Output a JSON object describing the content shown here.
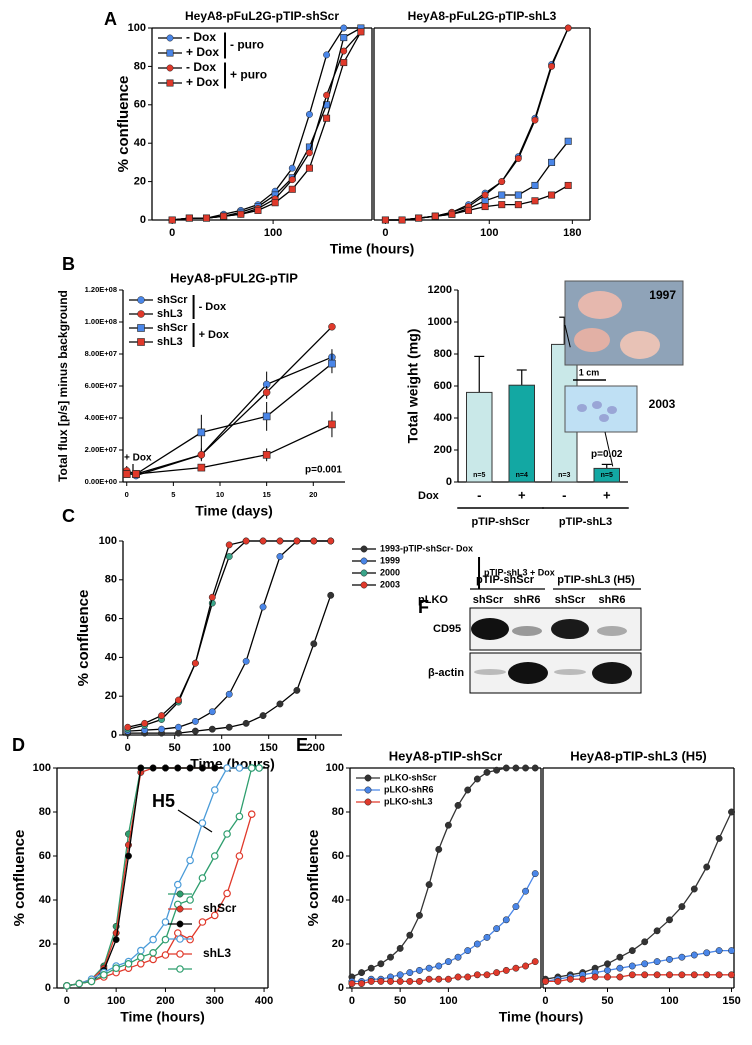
{
  "chart_data": [
    {
      "type": "line",
      "panel": "A",
      "title": "HeyA8-pFuL2G-pTIP-shScr",
      "xlabel": "Time (hours)",
      "ylabel": "% confluence",
      "x": [
        0,
        17,
        34,
        51,
        68,
        85,
        102,
        119,
        136,
        153,
        170,
        187
      ],
      "xlim": [
        -20,
        198
      ],
      "xticks": [
        0,
        100
      ],
      "ylim": [
        0,
        100
      ],
      "yticks": [
        0,
        20,
        40,
        60,
        80,
        100
      ],
      "legend": "upper left",
      "line_color": "#000000",
      "series": [
        {
          "name": "- Dox",
          "group": "- puro",
          "color": "#4a86e8",
          "marker": "circle",
          "values": [
            0,
            1,
            1,
            3,
            5,
            8,
            15,
            27,
            55,
            86,
            100,
            100
          ]
        },
        {
          "name": "+ Dox",
          "group": "- puro",
          "color": "#4a86e8",
          "marker": "square",
          "values": [
            0,
            1,
            1,
            2,
            4,
            7,
            13,
            22,
            38,
            60,
            95,
            100
          ]
        },
        {
          "name": "- Dox",
          "group": "+ puro",
          "color": "#e0392b",
          "marker": "circle",
          "values": [
            0,
            1,
            1,
            2,
            3,
            6,
            11,
            21,
            35,
            65,
            88,
            98
          ]
        },
        {
          "name": "+ Dox",
          "group": "+ puro",
          "color": "#e0392b",
          "marker": "square",
          "values": [
            0,
            1,
            1,
            2,
            3,
            5,
            9,
            16,
            27,
            53,
            82,
            98
          ]
        }
      ]
    },
    {
      "type": "line",
      "title": "HeyA8-pFuL2G-pTIP-shL3",
      "x": [
        0,
        16,
        32,
        48,
        64,
        80,
        96,
        112,
        128,
        144,
        160,
        176
      ],
      "xlim": [
        -11,
        197
      ],
      "xticks": [
        0,
        100,
        180
      ],
      "ylim": [
        0,
        100
      ],
      "line_color": "#000000",
      "series": [
        {
          "color": "#4a86e8",
          "marker": "circle",
          "values": [
            0,
            0,
            1,
            2,
            4,
            8,
            14,
            20,
            33,
            53,
            81,
            100
          ]
        },
        {
          "color": "#4a86e8",
          "marker": "square",
          "values": [
            0,
            0,
            1,
            2,
            3,
            6,
            10,
            13,
            13,
            18,
            30,
            41
          ]
        },
        {
          "color": "#e0392b",
          "marker": "circle",
          "values": [
            0,
            0,
            1,
            2,
            4,
            7,
            13,
            20,
            32,
            52,
            80,
            100
          ]
        },
        {
          "color": "#e0392b",
          "marker": "square",
          "values": [
            0,
            0,
            1,
            2,
            3,
            5,
            7,
            8,
            8,
            10,
            13,
            18
          ]
        }
      ]
    },
    {
      "type": "line",
      "panel": "B",
      "title": "HeyA8-pFUL2G-pTIP",
      "xlabel": "Time (days)",
      "ylabel": "Total flux [p/s] minus background",
      "x": [
        0,
        1,
        8,
        15,
        22
      ],
      "xlim": [
        -0.4,
        23.4
      ],
      "xticks": [
        0,
        5,
        10,
        15,
        20
      ],
      "ylim": [
        0,
        120000000
      ],
      "yticks": [
        {
          "value": 0,
          "label": "0.00E+00"
        },
        {
          "value": 20000000,
          "label": "2.00E+07"
        },
        {
          "value": 40000000,
          "label": "4.00E+07"
        },
        {
          "value": 60000000,
          "label": "6.00E+07"
        },
        {
          "value": 80000000,
          "label": "8.00E+07"
        },
        {
          "value": 100000000,
          "label": "1.00E+08"
        },
        {
          "value": 120000000,
          "label": "1.20E+08"
        }
      ],
      "legend": "upper left",
      "line_color": "#000000",
      "annotations": [
        "+ Dox",
        "p=0.001"
      ],
      "series": [
        {
          "name": "shScr",
          "group": "- Dox",
          "color": "#4a86e8",
          "marker": "circle",
          "values": [
            6000000,
            4000000,
            17000000,
            61000000,
            78000000
          ],
          "errors": [
            3000000,
            2000000,
            4000000,
            8000000,
            5000000
          ]
        },
        {
          "name": "shL3",
          "group": "- Dox",
          "color": "#e0392b",
          "marker": "circle",
          "values": [
            7000000,
            5000000,
            17000000,
            56000000,
            97000000
          ],
          "errors": [
            3000000,
            2000000,
            3000000,
            4000000,
            2000000
          ]
        },
        {
          "name": "shScr",
          "group": "+ Dox",
          "color": "#4a86e8",
          "marker": "square",
          "values": [
            5000000,
            5000000,
            31000000,
            41000000,
            74000000
          ],
          "errors": [
            2000000,
            2000000,
            11000000,
            9000000,
            6000000
          ]
        },
        {
          "name": "shL3",
          "group": "+ Dox",
          "color": "#e0392b",
          "marker": "square",
          "values": [
            5000000,
            5000000,
            9000000,
            17000000,
            36000000
          ],
          "errors": [
            2000000,
            2000000,
            2000000,
            4000000,
            8000000
          ]
        }
      ]
    },
    {
      "type": "bar",
      "ylabel": "Total weight (mg)",
      "ylim": [
        0,
        1200
      ],
      "yticks": [
        0,
        200,
        400,
        600,
        800,
        1000,
        1200
      ],
      "values": [
        560,
        605,
        860,
        85
      ],
      "errors": [
        225,
        95,
        170,
        25
      ],
      "colors": [
        "#c9e8e8",
        "#13a8a3",
        "#c9e8e8",
        "#13a8a3"
      ],
      "sample_labels": [
        "n=5",
        "n=4",
        "n=3",
        "n=5"
      ],
      "dox_title": "Dox",
      "dox_labels": [
        "-",
        "+",
        "-",
        "+"
      ],
      "groups": [
        "pTIP-shScr",
        "pTIP-shL3"
      ],
      "annotation": "p=0.02",
      "photo_labels": [
        "1997",
        "1 cm",
        "2003"
      ]
    },
    {
      "type": "line",
      "panel": "C",
      "xlabel": "Time (hours)",
      "ylabel": "% confluence",
      "x": [
        0,
        18,
        36,
        54,
        72,
        90,
        108,
        126,
        144,
        162,
        180,
        198,
        216
      ],
      "xlim": [
        -5,
        228
      ],
      "xticks": [
        0,
        50,
        100,
        150,
        200
      ],
      "ylim": [
        0,
        100
      ],
      "yticks": [
        0,
        20,
        40,
        60,
        80,
        100
      ],
      "legend": "right",
      "line_color": "#000000",
      "series": [
        {
          "name": "1993-pTIP-shScr- Dox",
          "color": "#333333",
          "marker": "circle",
          "values": [
            1,
            1,
            1,
            1,
            2,
            3,
            4,
            6,
            10,
            16,
            23,
            47,
            72
          ]
        },
        {
          "name": "1999",
          "group": "pTIP-shL3 + Dox",
          "color": "#4a86e8",
          "marker": "circle",
          "values": [
            2,
            2.5,
            3,
            4,
            7,
            12,
            21,
            38,
            66,
            92,
            100,
            100,
            100
          ]
        },
        {
          "name": "2000",
          "group": "pTIP-shL3 + Dox",
          "color": "#3aa58a",
          "marker": "circle",
          "values": [
            3,
            5,
            8,
            17,
            37,
            68,
            92,
            100,
            100,
            100,
            100,
            100,
            100
          ]
        },
        {
          "name": "2003",
          "group": "pTIP-shL3 + Dox",
          "color": "#e0392b",
          "marker": "circle",
          "values": [
            4,
            6,
            10,
            18,
            37,
            71,
            98,
            100,
            100,
            100,
            100,
            100,
            100
          ]
        }
      ]
    },
    {
      "type": "line",
      "panel": "D",
      "xlabel": "Time (hours)",
      "ylabel": "% confluence",
      "x": [
        0,
        25,
        50,
        75,
        100,
        125,
        150,
        175,
        200,
        225,
        250,
        275,
        300,
        325,
        350,
        375,
        390
      ],
      "xlim": [
        -20,
        408
      ],
      "xticks": [
        0,
        100,
        200,
        300,
        400
      ],
      "ylim": [
        0,
        100
      ],
      "yticks": [
        0,
        20,
        40,
        60,
        80,
        100
      ],
      "legend": "lower right",
      "annotations": [
        "H5"
      ],
      "series": [
        {
          "group": "shScr",
          "color": "#2e9e6e",
          "marker": "circle",
          "values": [
            1,
            2,
            4,
            10,
            28,
            70,
            100,
            100,
            100,
            100,
            100,
            100,
            100,
            100,
            100,
            100,
            100
          ]
        },
        {
          "group": "shScr",
          "color": "#e0392b",
          "marker": "circle",
          "values": [
            1,
            2,
            4,
            9,
            25,
            65,
            98,
            100,
            100,
            100,
            100,
            100,
            100,
            100,
            100,
            100,
            100
          ]
        },
        {
          "group": "shScr",
          "color": "#000000",
          "marker": "circle",
          "values": [
            1,
            2,
            3,
            8,
            22,
            60,
            100,
            100,
            100,
            100,
            100,
            100,
            100,
            100,
            100,
            100,
            100
          ]
        },
        {
          "group": "shL3",
          "color": "#4a9bd8",
          "marker": "circle",
          "open": true,
          "values": [
            1,
            2,
            4,
            7,
            10,
            12,
            17,
            22,
            30,
            47,
            58,
            75,
            90,
            100,
            100,
            100,
            100
          ]
        },
        {
          "group": "shL3",
          "color": "#e0392b",
          "marker": "circle",
          "open": true,
          "values": [
            1,
            2,
            3,
            5,
            7,
            9,
            11,
            13,
            15,
            25,
            22,
            30,
            33,
            43,
            60,
            79,
            null
          ]
        },
        {
          "group": "shL3",
          "color": "#2e9e6e",
          "marker": "circle",
          "open": true,
          "values": [
            1,
            2,
            3,
            6,
            9,
            11,
            14,
            16,
            22,
            38,
            40,
            50,
            60,
            70,
            78,
            100,
            100
          ]
        }
      ]
    },
    {
      "type": "line",
      "panel": "E",
      "title": "HeyA8-pTIP-shScr",
      "xlabel": "Time (hours)",
      "ylabel": "% confluence",
      "x": [
        0,
        10,
        20,
        30,
        40,
        50,
        60,
        70,
        80,
        90,
        100,
        110,
        120,
        130,
        140,
        150,
        160,
        170,
        180,
        190
      ],
      "xlim": [
        -2,
        196
      ],
      "xticks": [
        0,
        50,
        100
      ],
      "ylim": [
        0,
        100
      ],
      "yticks": [
        0,
        20,
        40,
        60,
        80,
        100
      ],
      "legend": "upper left",
      "series": [
        {
          "name": "pLKO-shScr",
          "color": "#333333",
          "marker": "circle",
          "values": [
            5,
            7,
            9,
            11,
            14,
            18,
            24,
            33,
            47,
            63,
            74,
            83,
            90,
            95,
            98,
            99,
            100,
            100,
            100,
            100
          ]
        },
        {
          "name": "pLKO-shR6",
          "color": "#4a86e8",
          "marker": "circle",
          "values": [
            3,
            3,
            4,
            4,
            5,
            6,
            7,
            8,
            9,
            10,
            12,
            14,
            17,
            20,
            23,
            27,
            31,
            37,
            44,
            52
          ]
        },
        {
          "name": "pLKO-shL3",
          "color": "#e0392b",
          "marker": "circle",
          "values": [
            2,
            2,
            3,
            3,
            3,
            3,
            3,
            3,
            4,
            4,
            4,
            5,
            5,
            6,
            6,
            7,
            8,
            9,
            10,
            12
          ]
        }
      ]
    },
    {
      "type": "line",
      "title": "HeyA8-pTIP-shL3 (H5)",
      "x": [
        0,
        10,
        20,
        30,
        40,
        50,
        60,
        70,
        80,
        90,
        100,
        110,
        120,
        130,
        140,
        150
      ],
      "xlim": [
        -2,
        152
      ],
      "xticks": [
        0,
        50,
        100,
        150
      ],
      "ylim": [
        0,
        100
      ],
      "series": [
        {
          "color": "#333333",
          "marker": "circle",
          "values": [
            4,
            5,
            6,
            7,
            9,
            11,
            14,
            17,
            21,
            26,
            31,
            37,
            45,
            55,
            68,
            80
          ]
        },
        {
          "color": "#4a86e8",
          "marker": "circle",
          "values": [
            3,
            4,
            5,
            6,
            7,
            8,
            9,
            10,
            11,
            12,
            13,
            14,
            15,
            16,
            17,
            17
          ]
        },
        {
          "color": "#e0392b",
          "marker": "circle",
          "values": [
            3,
            3,
            4,
            4,
            5,
            5,
            5,
            6,
            6,
            6,
            6,
            6,
            6,
            6,
            6,
            6
          ]
        }
      ]
    }
  ],
  "blot": {
    "panel": "F",
    "groups": [
      "pTIP-shScr",
      "pTIP-shL3 (H5)"
    ],
    "row_title": "pLKO",
    "lanes": [
      "shScr",
      "shR6",
      "shScr",
      "shR6"
    ],
    "rows": [
      "CD95",
      "β-actin"
    ]
  }
}
